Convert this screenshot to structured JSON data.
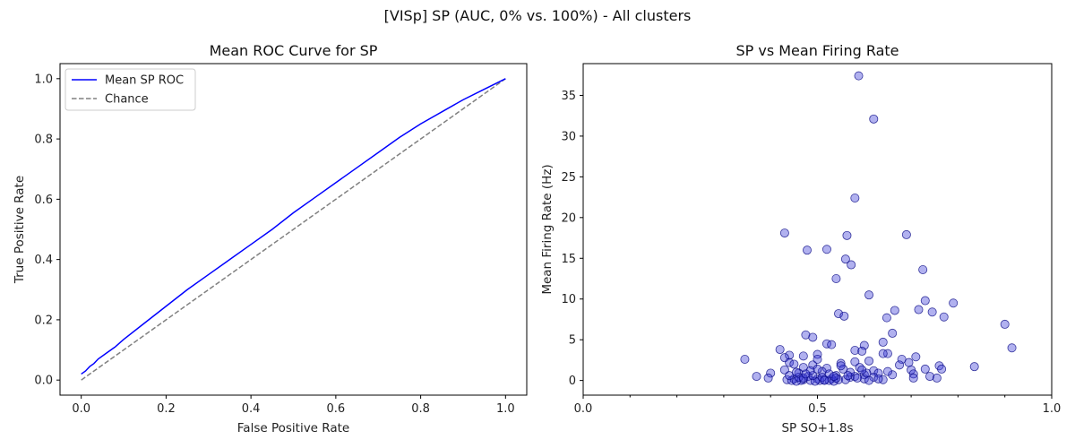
{
  "figure": {
    "suptitle": "[VISp] SP (AUC, 0% vs. 100%) - All clusters"
  },
  "chart_data": [
    {
      "type": "line",
      "title": "Mean ROC Curve for SP",
      "xlabel": "False Positive Rate",
      "ylabel": "True Positive Rate",
      "xlim": [
        -0.05,
        1.05
      ],
      "ylim": [
        -0.05,
        1.05
      ],
      "xticks": [
        "0.0",
        "0.2",
        "0.4",
        "0.6",
        "0.8",
        "1.0"
      ],
      "yticks": [
        "0.0",
        "0.2",
        "0.4",
        "0.6",
        "0.8",
        "1.0"
      ],
      "grid": false,
      "legend_location": "upper-left",
      "series": [
        {
          "name": "Mean SP ROC",
          "color": "#0000ff",
          "style": "solid",
          "x": [
            0.0,
            0.01,
            0.02,
            0.03,
            0.04,
            0.06,
            0.08,
            0.1,
            0.15,
            0.2,
            0.25,
            0.3,
            0.35,
            0.4,
            0.45,
            0.5,
            0.55,
            0.6,
            0.65,
            0.7,
            0.75,
            0.8,
            0.85,
            0.9,
            0.95,
            1.0
          ],
          "y": [
            0.02,
            0.03,
            0.045,
            0.055,
            0.07,
            0.09,
            0.11,
            0.135,
            0.19,
            0.245,
            0.3,
            0.35,
            0.4,
            0.45,
            0.5,
            0.555,
            0.605,
            0.655,
            0.705,
            0.755,
            0.805,
            0.85,
            0.89,
            0.93,
            0.965,
            1.0
          ]
        },
        {
          "name": "Chance",
          "color": "#808080",
          "style": "dashed",
          "x": [
            0.0,
            1.0
          ],
          "y": [
            0.0,
            1.0
          ]
        }
      ]
    },
    {
      "type": "scatter",
      "title": "SP vs Mean Firing Rate",
      "xlabel": "SP SO+1.8s",
      "ylabel": "Mean Firing Rate (Hz)",
      "xlim": [
        0.0,
        1.0
      ],
      "ylim": [
        -1.8,
        38.9
      ],
      "xticks": [
        "0.0",
        "0.5",
        "1.0"
      ],
      "yticks": [
        "0",
        "5",
        "10",
        "15",
        "20",
        "25",
        "30",
        "35"
      ],
      "grid": false,
      "marker_color": "#3b3bd6",
      "marker_edge": "#000080",
      "points": [
        {
          "x": 0.588,
          "y": 37.4
        },
        {
          "x": 0.62,
          "y": 32.1
        },
        {
          "x": 0.58,
          "y": 22.4
        },
        {
          "x": 0.43,
          "y": 18.1
        },
        {
          "x": 0.563,
          "y": 17.8
        },
        {
          "x": 0.69,
          "y": 17.9
        },
        {
          "x": 0.478,
          "y": 16.0
        },
        {
          "x": 0.52,
          "y": 16.1
        },
        {
          "x": 0.56,
          "y": 14.9
        },
        {
          "x": 0.572,
          "y": 14.2
        },
        {
          "x": 0.725,
          "y": 13.6
        },
        {
          "x": 0.54,
          "y": 12.5
        },
        {
          "x": 0.61,
          "y": 10.5
        },
        {
          "x": 0.73,
          "y": 9.8
        },
        {
          "x": 0.79,
          "y": 9.5
        },
        {
          "x": 0.716,
          "y": 8.7
        },
        {
          "x": 0.745,
          "y": 8.4
        },
        {
          "x": 0.665,
          "y": 8.6
        },
        {
          "x": 0.545,
          "y": 8.2
        },
        {
          "x": 0.557,
          "y": 7.9
        },
        {
          "x": 0.77,
          "y": 7.8
        },
        {
          "x": 0.648,
          "y": 7.7
        },
        {
          "x": 0.9,
          "y": 6.9
        },
        {
          "x": 0.66,
          "y": 5.8
        },
        {
          "x": 0.475,
          "y": 5.6
        },
        {
          "x": 0.49,
          "y": 5.3
        },
        {
          "x": 0.52,
          "y": 4.5
        },
        {
          "x": 0.53,
          "y": 4.4
        },
        {
          "x": 0.6,
          "y": 4.3
        },
        {
          "x": 0.915,
          "y": 4.0
        },
        {
          "x": 0.64,
          "y": 4.7
        },
        {
          "x": 0.42,
          "y": 3.8
        },
        {
          "x": 0.58,
          "y": 3.7
        },
        {
          "x": 0.595,
          "y": 3.6
        },
        {
          "x": 0.65,
          "y": 3.3
        },
        {
          "x": 0.64,
          "y": 3.3
        },
        {
          "x": 0.5,
          "y": 3.2
        },
        {
          "x": 0.44,
          "y": 3.1
        },
        {
          "x": 0.47,
          "y": 3.0
        },
        {
          "x": 0.71,
          "y": 2.9
        },
        {
          "x": 0.43,
          "y": 2.8
        },
        {
          "x": 0.345,
          "y": 2.6
        },
        {
          "x": 0.68,
          "y": 2.6
        },
        {
          "x": 0.61,
          "y": 2.4
        },
        {
          "x": 0.58,
          "y": 2.3
        },
        {
          "x": 0.55,
          "y": 2.1
        },
        {
          "x": 0.44,
          "y": 2.2
        },
        {
          "x": 0.695,
          "y": 2.2
        },
        {
          "x": 0.49,
          "y": 1.9
        },
        {
          "x": 0.76,
          "y": 1.8
        },
        {
          "x": 0.835,
          "y": 1.7
        },
        {
          "x": 0.47,
          "y": 1.6
        },
        {
          "x": 0.52,
          "y": 1.5
        },
        {
          "x": 0.555,
          "y": 1.4
        },
        {
          "x": 0.73,
          "y": 1.4
        },
        {
          "x": 0.765,
          "y": 1.4
        },
        {
          "x": 0.7,
          "y": 1.3
        },
        {
          "x": 0.43,
          "y": 1.3
        },
        {
          "x": 0.62,
          "y": 1.2
        },
        {
          "x": 0.51,
          "y": 1.1
        },
        {
          "x": 0.4,
          "y": 0.9
        },
        {
          "x": 0.46,
          "y": 0.9
        },
        {
          "x": 0.63,
          "y": 0.9
        },
        {
          "x": 0.705,
          "y": 0.8
        },
        {
          "x": 0.66,
          "y": 0.7
        },
        {
          "x": 0.6,
          "y": 0.7
        },
        {
          "x": 0.54,
          "y": 0.6
        },
        {
          "x": 0.37,
          "y": 0.5
        },
        {
          "x": 0.74,
          "y": 0.5
        },
        {
          "x": 0.48,
          "y": 0.5
        },
        {
          "x": 0.57,
          "y": 0.4
        },
        {
          "x": 0.395,
          "y": 0.3
        },
        {
          "x": 0.755,
          "y": 0.3
        },
        {
          "x": 0.705,
          "y": 0.3
        },
        {
          "x": 0.45,
          "y": 0.2
        },
        {
          "x": 0.5,
          "y": 0.2
        },
        {
          "x": 0.53,
          "y": 0.2
        },
        {
          "x": 0.6,
          "y": 0.2
        },
        {
          "x": 0.435,
          "y": 0.1
        },
        {
          "x": 0.47,
          "y": 0.1
        },
        {
          "x": 0.515,
          "y": 0.1
        },
        {
          "x": 0.545,
          "y": 0.1
        },
        {
          "x": 0.445,
          "y": 0.0
        },
        {
          "x": 0.465,
          "y": 0.0
        },
        {
          "x": 0.485,
          "y": 0.0
        },
        {
          "x": 0.505,
          "y": 0.0
        },
        {
          "x": 0.525,
          "y": 0.0
        },
        {
          "x": 0.455,
          "y": -0.1
        },
        {
          "x": 0.495,
          "y": -0.1
        },
        {
          "x": 0.535,
          "y": -0.1
        },
        {
          "x": 0.46,
          "y": 0.4
        },
        {
          "x": 0.49,
          "y": 0.6
        },
        {
          "x": 0.51,
          "y": 0.4
        },
        {
          "x": 0.54,
          "y": 0.3
        },
        {
          "x": 0.56,
          "y": 0.1
        },
        {
          "x": 0.58,
          "y": 0.5
        },
        {
          "x": 0.62,
          "y": 0.4
        },
        {
          "x": 0.64,
          "y": 0.1
        },
        {
          "x": 0.675,
          "y": 1.9
        },
        {
          "x": 0.59,
          "y": 1.6
        },
        {
          "x": 0.5,
          "y": 2.6
        },
        {
          "x": 0.45,
          "y": 2.0
        },
        {
          "x": 0.485,
          "y": 1.2
        },
        {
          "x": 0.525,
          "y": 0.8
        },
        {
          "x": 0.47,
          "y": 0.3
        },
        {
          "x": 0.57,
          "y": 1.0
        },
        {
          "x": 0.61,
          "y": 0.0
        },
        {
          "x": 0.44,
          "y": 0.6
        },
        {
          "x": 0.65,
          "y": 1.1
        },
        {
          "x": 0.55,
          "y": 1.8
        },
        {
          "x": 0.5,
          "y": 1.4
        },
        {
          "x": 0.455,
          "y": 1.0
        },
        {
          "x": 0.535,
          "y": 0.5
        },
        {
          "x": 0.585,
          "y": 0.3
        },
        {
          "x": 0.605,
          "y": 0.9
        },
        {
          "x": 0.63,
          "y": 0.2
        },
        {
          "x": 0.515,
          "y": 0.0
        },
        {
          "x": 0.475,
          "y": 0.8
        },
        {
          "x": 0.565,
          "y": 0.6
        },
        {
          "x": 0.595,
          "y": 1.3
        }
      ]
    }
  ]
}
